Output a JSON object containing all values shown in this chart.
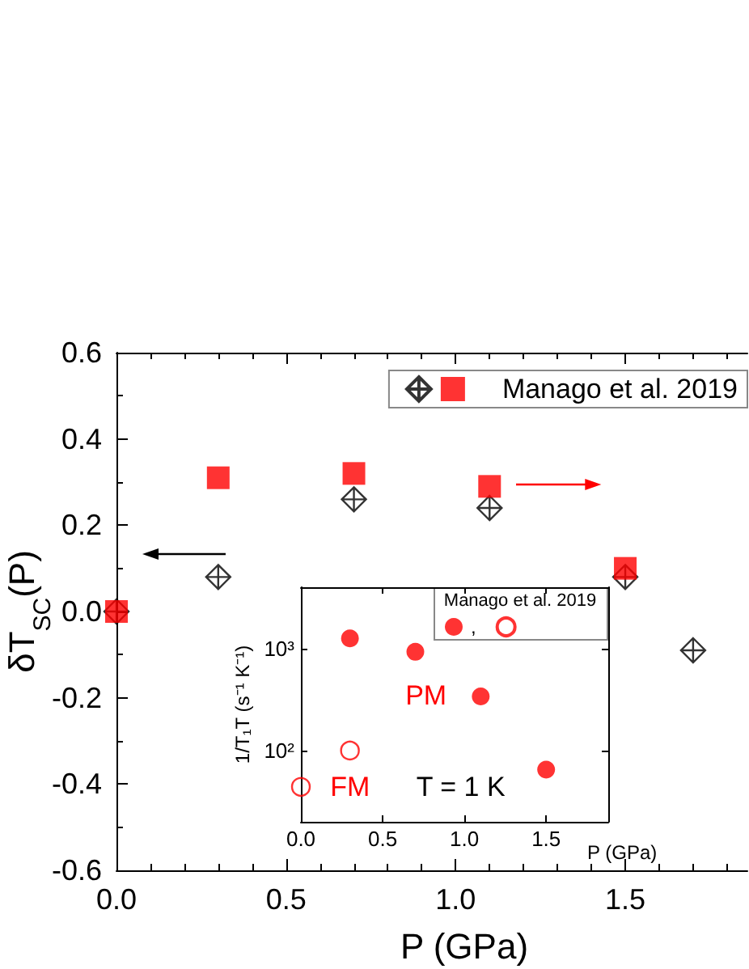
{
  "chart_data": [
    {
      "type": "scatter",
      "xlabel": "P (GPa)",
      "ylabel": "δT$_{SC}$(P)",
      "legend": "top right",
      "series": [
        {
          "color": "#000000",
          "marker": "cross",
          "x": [
            0,
            0.3,
            0.7,
            1.1,
            1.5,
            1.7
          ],
          "values": [
            0,
            0.08,
            0.26,
            0.24,
            0.08,
            -0.09
          ]
        },
        {
          "name": "Manago et al. 2019",
          "color": "#ff0000",
          "marker": "square",
          "x": [
            0,
            0.3,
            0.7,
            1.1,
            1.5
          ],
          "values": [
            0,
            0.31,
            0.32,
            0.29,
            0.1
          ]
        }
      ],
      "xlim": [
        0,
        1.86
      ],
      "xticks": [
        {
          "value": 0,
          "label": "0.0"
        },
        {
          "value": 0.1,
          "label": null
        },
        {
          "value": 0.2,
          "label": null
        },
        {
          "value": 0.3,
          "label": null
        },
        {
          "value": 0.4,
          "label": null
        },
        {
          "value": 0.5,
          "label": "0.5"
        },
        {
          "value": 0.6,
          "label": null
        },
        {
          "value": 0.7,
          "label": null
        },
        {
          "value": 0.8,
          "label": null
        },
        {
          "value": 0.9,
          "label": null
        },
        {
          "value": 1,
          "label": "1.0"
        },
        {
          "value": 1.1,
          "label": null
        },
        {
          "value": 1.2,
          "label": null
        },
        {
          "value": 1.3,
          "label": null
        },
        {
          "value": 1.4,
          "label": null
        },
        {
          "value": 1.5,
          "label": "1.5"
        },
        {
          "value": 1.6,
          "label": null
        },
        {
          "value": 1.7,
          "label": null
        },
        {
          "value": 1.8,
          "label": null
        }
      ],
      "ylim": [
        -0.6,
        0.6
      ],
      "yticks": [
        -0.6,
        {
          "value": -0.5,
          "label": null
        },
        -0.4,
        {
          "value": -0.3,
          "label": null
        },
        -0.2,
        {
          "value": -0.1,
          "label": null
        },
        {
          "value": 0,
          "label": "0.0"
        },
        {
          "value": 0.1,
          "label": null
        },
        0.2,
        {
          "value": 0.3,
          "label": null
        },
        0.4,
        {
          "value": 0.5,
          "label": null
        },
        0.6
      ]
    },
    {
      "type": "scatter",
      "xlabel": "P (GPa)",
      "ylabel": "1/T₁T (s⁻¹ K⁻¹)",
      "legend": "top right",
      "legend_title": "Manago et al. 2019",
      "log": true,
      "series": [
        {
          "name": ",",
          "color": "#ff0000",
          "marker": "circle",
          "x": [
            0.3,
            0.7,
            1.1,
            1.5
          ],
          "values": [
            1260,
            930,
            340,
            65
          ]
        },
        {
          "color": "#ff0000",
          "marker": "circle",
          "x": [
            0,
            0.3
          ],
          "values": [
            44,
            100
          ]
        }
      ],
      "xlim": [
        0,
        1.88
      ],
      "xticks": [
        {
          "value": 0,
          "label": "0.0"
        },
        {
          "value": 0.5,
          "label": "0.5"
        },
        {
          "value": 1,
          "label": "1.0"
        },
        {
          "value": 1.5,
          "label": "1.5"
        }
      ],
      "ylim": [
        20,
        4000
      ],
      "yticks": [
        {
          "value": 100,
          "label": "10²"
        },
        {
          "value": 1000,
          "label": "10³"
        }
      ],
      "annotations": [
        "PM",
        "FM",
        "T = 1 K"
      ]
    }
  ]
}
